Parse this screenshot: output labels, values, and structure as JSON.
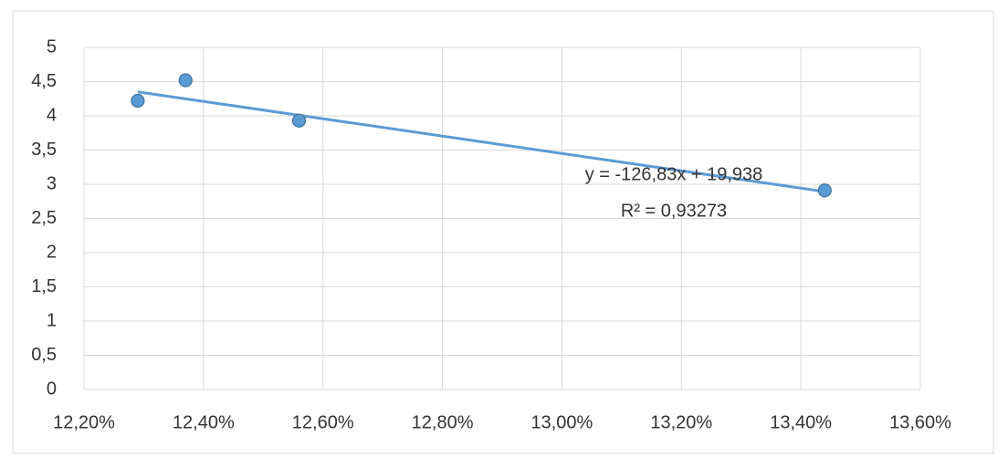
{
  "chart_data": {
    "type": "scatter",
    "x": [
      0.1229,
      0.1237,
      0.1256,
      0.1344
    ],
    "values": [
      4.22,
      4.52,
      3.93,
      2.91
    ],
    "color": "#5b9bd5",
    "xlim": [
      0.122,
      0.136
    ],
    "xticks": [
      {
        "value": 0.122,
        "label": "12,20%"
      },
      {
        "value": 0.124,
        "label": "12,40%"
      },
      {
        "value": 0.126,
        "label": "12,60%"
      },
      {
        "value": 0.128,
        "label": "12,80%"
      },
      {
        "value": 0.13,
        "label": "13,00%"
      },
      {
        "value": 0.132,
        "label": "13,20%"
      },
      {
        "value": 0.134,
        "label": "13,40%"
      },
      {
        "value": 0.136,
        "label": "13,60%"
      }
    ],
    "ylim": [
      0,
      5
    ],
    "yticks": [
      0,
      {
        "value": 0.5,
        "label": "0,5"
      },
      1,
      {
        "value": 1.5,
        "label": "1,5"
      },
      2,
      {
        "value": 2.5,
        "label": "2,5"
      },
      3,
      {
        "value": 3.5,
        "label": "3,5"
      },
      4,
      {
        "value": 4.5,
        "label": "4,5"
      },
      5
    ],
    "grid": true,
    "trendline": {
      "slope": -126.83,
      "intercept": 19.938,
      "equation": "y = -126,83x + 19,938",
      "r_squared": 0.93273,
      "r_squared_label": "R² = 0,93273"
    }
  }
}
